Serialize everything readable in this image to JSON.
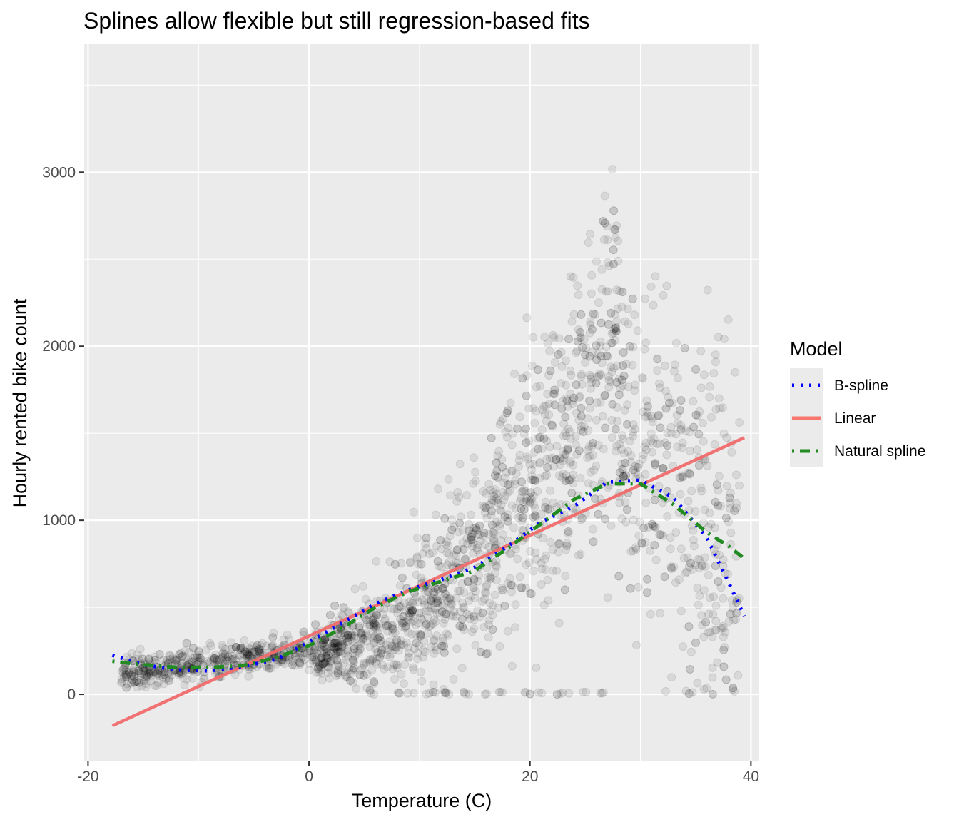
{
  "chart_data": {
    "type": "scatter",
    "title": "Splines allow flexible but still regression-based fits",
    "xlabel": "Temperature (C)",
    "ylabel": "Hourly rented bike count",
    "xlim": [
      -20.35,
      40.75
    ],
    "ylim": [
      -385,
      3735
    ],
    "x_ticks": [
      -20,
      0,
      20,
      40
    ],
    "x_tick_labels": [
      "-20",
      "0",
      "20",
      "40"
    ],
    "y_ticks": [
      0,
      1000,
      2000,
      3000
    ],
    "y_tick_labels": [
      "0",
      "1000",
      "2000",
      "3000"
    ],
    "grid": true,
    "panel_background": "#ebebeb",
    "point_color": "#000000",
    "point_alpha": 0.08,
    "legend": {
      "title": "Model",
      "position": "right",
      "items": [
        {
          "label": "B-spline",
          "color": "#0000ff",
          "style": "dotted"
        },
        {
          "label": "Linear",
          "color": "#f8766d",
          "style": "solid"
        },
        {
          "label": "Natural spline",
          "color": "#228b22",
          "style": "dotdash"
        }
      ]
    },
    "series": [
      {
        "name": "Linear",
        "color": "#f06c6c",
        "style": "solid",
        "x": [
          -17.8,
          39.4
        ],
        "y": [
          -180,
          1475
        ]
      },
      {
        "name": "B-spline",
        "color": "#0000ff",
        "style": "dotted",
        "x": [
          -17.8,
          -15,
          -12,
          -9,
          -6,
          -3,
          0,
          3,
          6,
          9,
          12,
          15,
          18,
          21,
          24,
          27,
          30,
          33,
          36,
          38,
          39.4
        ],
        "y": [
          225,
          170,
          140,
          135,
          160,
          200,
          300,
          410,
          520,
          600,
          660,
          730,
          850,
          990,
          1080,
          1220,
          1230,
          1130,
          900,
          640,
          450
        ]
      },
      {
        "name": "Natural spline",
        "color": "#228b22",
        "style": "dotdash",
        "x": [
          -17.8,
          -15,
          -12,
          -9,
          -6,
          -3,
          0,
          3,
          6,
          9,
          12,
          15,
          18,
          21,
          24,
          27,
          30,
          33,
          36,
          38,
          39.4
        ],
        "y": [
          190,
          170,
          155,
          155,
          165,
          210,
          280,
          380,
          500,
          590,
          650,
          710,
          840,
          980,
          1120,
          1210,
          1210,
          1090,
          930,
          850,
          780
        ]
      }
    ]
  }
}
